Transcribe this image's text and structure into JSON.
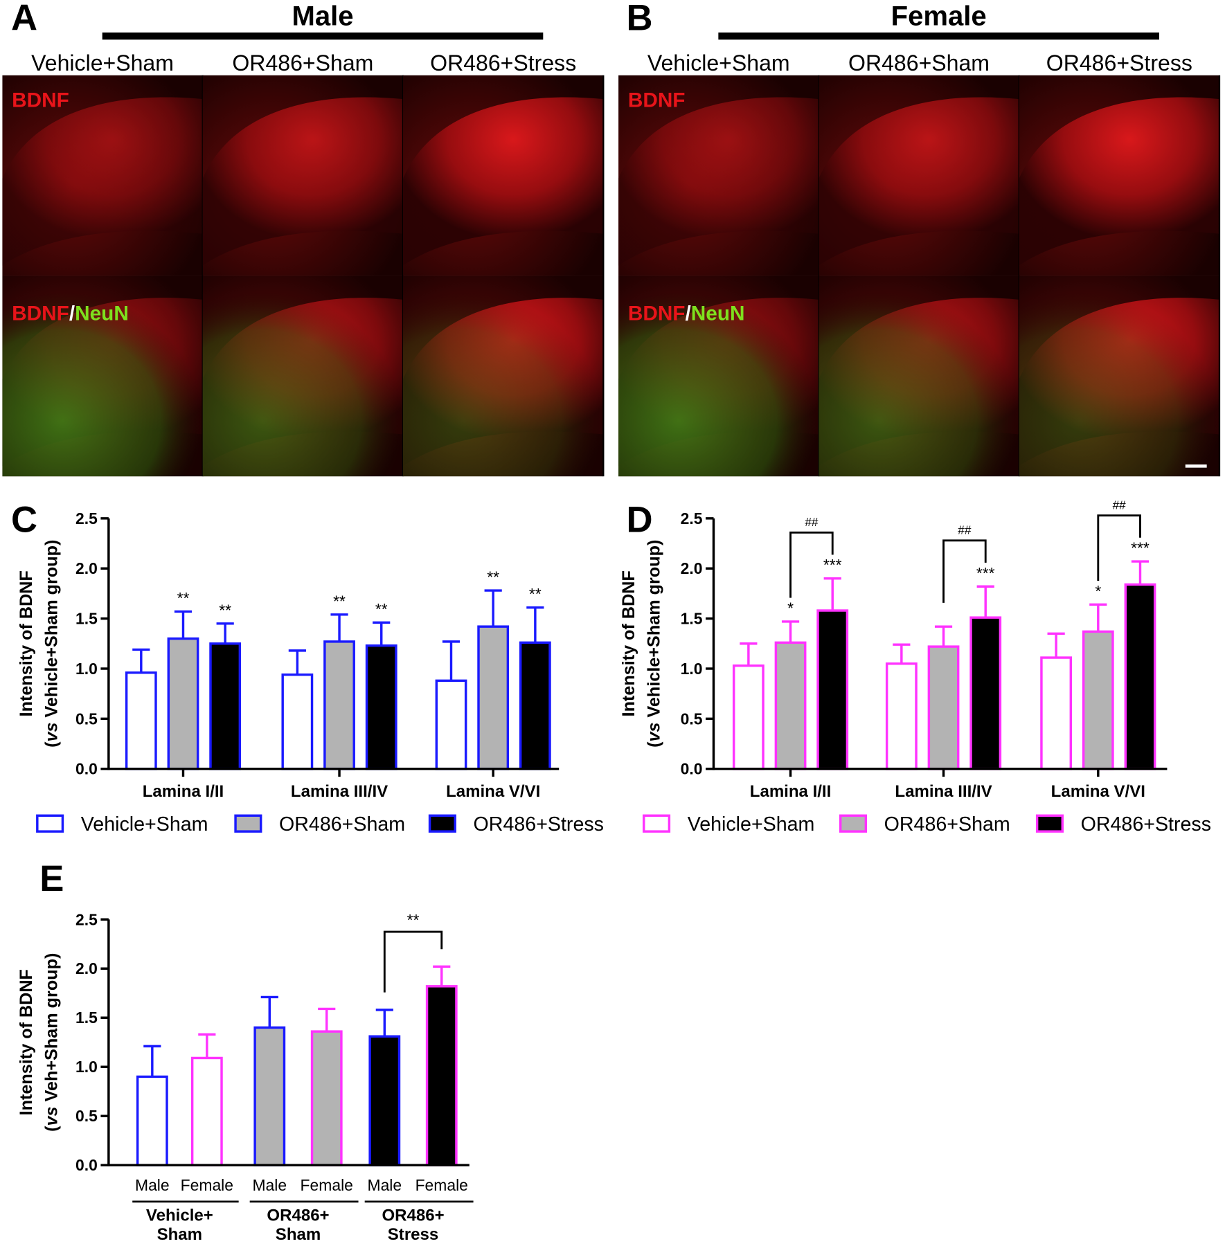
{
  "figure": {
    "panel_labels": [
      "A",
      "B",
      "C",
      "D",
      "E"
    ],
    "micrographs": [
      {
        "header": "Male",
        "columns": [
          "Vehicle+Sham",
          "OR486+Sham",
          "OR486+Stress"
        ]
      },
      {
        "header": "Female",
        "columns": [
          "Vehicle+Sham",
          "OR486+Sham",
          "OR486+Stress"
        ]
      }
    ],
    "row_labels": [
      [
        {
          "text": "BDNF",
          "color": "#e8141a"
        }
      ],
      [
        {
          "text": "BDNF",
          "color": "#e8141a"
        },
        {
          "text": "/",
          "color": "#ffffff"
        },
        {
          "text": "NeuN",
          "color": "#7ee01e"
        }
      ]
    ]
  },
  "chart_data": [
    {
      "type": "bar",
      "ylabel": "Intensity of BDNF",
      "ylabel_note": {
        "open": "(",
        "italic": "vs",
        "rest": " Vehicle+Sham group)"
      },
      "categories": [
        "Lamina I/II",
        "Lamina III/IV",
        "Lamina V/VI"
      ],
      "edgecolor": "#1a1aff",
      "series": [
        {
          "name": "Vehicle+Sham",
          "color": "#ffffff",
          "values": [
            0.96,
            0.94,
            0.88
          ],
          "errors": [
            0.23,
            0.24,
            0.39
          ],
          "significance": [
            null,
            null,
            null
          ]
        },
        {
          "name": "OR486+Sham",
          "color": "#b3b3b3",
          "values": [
            1.3,
            1.27,
            1.42
          ],
          "errors": [
            0.27,
            0.27,
            0.36
          ],
          "significance": [
            "**",
            "**",
            "**"
          ]
        },
        {
          "name": "OR486+Stress",
          "color": "#000000",
          "values": [
            1.25,
            1.23,
            1.26
          ],
          "errors": [
            0.2,
            0.23,
            0.35
          ],
          "significance": [
            "**",
            "**",
            "**"
          ]
        }
      ],
      "ylim": [
        0,
        2.5
      ],
      "yticks": [
        {
          "value": 0,
          "label": "0.0"
        },
        0.5,
        {
          "value": 1,
          "label": "1.0"
        },
        1.5,
        {
          "value": 2,
          "label": "2.0"
        },
        2.5
      ]
    },
    {
      "type": "bar",
      "ylabel": "Intensity of BDNF",
      "ylabel_note": {
        "open": "(",
        "italic": "vs",
        "rest": " Vehicle+Sham group)"
      },
      "categories": [
        "Lamina I/II",
        "Lamina III/IV",
        "Lamina V/VI"
      ],
      "edgecolor": "#ff33ff",
      "series": [
        {
          "name": "Vehicle+Sham",
          "color": "#ffffff",
          "values": [
            1.03,
            1.05,
            1.11
          ],
          "errors": [
            0.22,
            0.19,
            0.24
          ],
          "significance": [
            null,
            null,
            null
          ]
        },
        {
          "name": "OR486+Sham",
          "color": "#b3b3b3",
          "values": [
            1.26,
            1.22,
            1.37
          ],
          "errors": [
            0.21,
            0.2,
            0.27
          ],
          "significance": [
            "*",
            null,
            "*"
          ]
        },
        {
          "name": "OR486+Stress",
          "color": "#000000",
          "values": [
            1.58,
            1.51,
            1.84
          ],
          "errors": [
            0.32,
            0.31,
            0.23
          ],
          "significance": [
            "***",
            "***",
            "***"
          ]
        }
      ],
      "brackets": [
        "##",
        "##",
        "##"
      ],
      "ylim": [
        0,
        2.5
      ],
      "yticks": [
        {
          "value": 0,
          "label": "0.0"
        },
        0.5,
        {
          "value": 1,
          "label": "1.0"
        },
        1.5,
        {
          "value": 2,
          "label": "2.0"
        },
        2.5
      ]
    },
    {
      "type": "bar",
      "ylabel": "Intensity of BDNF",
      "ylabel_note": {
        "open": "(",
        "italic": "vs",
        "rest": " Veh+Sham group)"
      },
      "categories": [
        "Male",
        "Female",
        "Male",
        "Female",
        "Male",
        "Female"
      ],
      "groups": [
        {
          "lines": [
            "Vehicle+",
            "Sham"
          ]
        },
        {
          "lines": [
            "OR486+",
            "Sham"
          ]
        },
        {
          "lines": [
            "OR486+",
            "Stress"
          ]
        }
      ],
      "values": [
        0.9,
        1.09,
        1.4,
        1.36,
        1.31,
        1.82
      ],
      "errors": [
        0.31,
        0.24,
        0.31,
        0.23,
        0.27,
        0.2
      ],
      "colors": [
        "#ffffff",
        "#ffffff",
        "#b3b3b3",
        "#b3b3b3",
        "#000000",
        "#000000"
      ],
      "edgecolors": [
        "#1a1aff",
        "#ff33ff",
        "#1a1aff",
        "#ff33ff",
        "#1a1aff",
        "#ff33ff"
      ],
      "brackets": [
        {
          "label": "**",
          "bars": [
            4,
            5
          ]
        }
      ],
      "ylim": [
        0,
        2.5
      ],
      "yticks": [
        {
          "value": 0,
          "label": "0.0"
        },
        0.5,
        {
          "value": 1,
          "label": "1.0"
        },
        1.5,
        {
          "value": 2,
          "label": "2.0"
        },
        2.5
      ]
    }
  ]
}
